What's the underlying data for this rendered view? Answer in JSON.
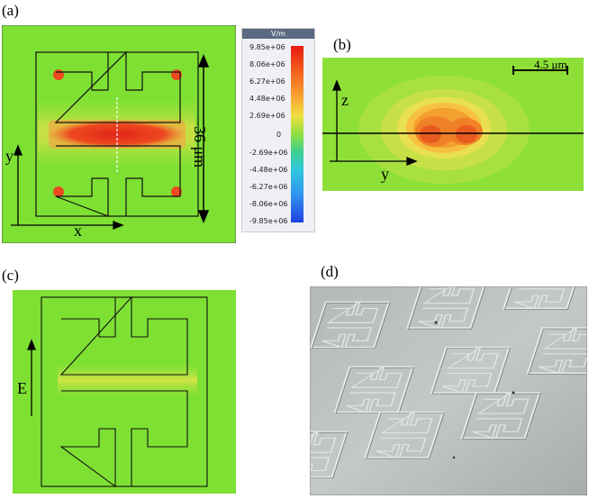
{
  "panels": {
    "a": {
      "label": "(a)",
      "x_axis": "x",
      "y_axis": "y",
      "dimension": "36 μm"
    },
    "b": {
      "label": "(b)",
      "z_axis": "z",
      "y_axis": "y",
      "scalebar": "4.5 μm"
    },
    "c": {
      "label": "(c)",
      "field": "E"
    },
    "d": {
      "label": "(d)"
    }
  },
  "colorbar": {
    "unit": "V/m",
    "ticks": [
      "9.85e+06",
      "8.06e+06",
      "6.27e+06",
      "4.48e+06",
      "2.69e+06",
      "0",
      "-2.69e+06",
      "-4.48e+06",
      "-6.27e+06",
      "-8.06e+06",
      "-9.85e+06"
    ]
  },
  "colors": {
    "field_bg": "#7ee033",
    "hot": "#e8321e",
    "warm": "#f0a030"
  }
}
